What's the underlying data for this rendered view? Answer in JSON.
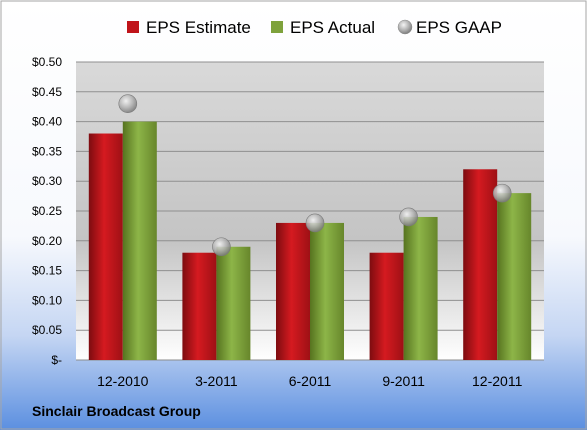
{
  "chart_data": {
    "type": "bar",
    "title": "",
    "categories": [
      "12-2010",
      "3-2011",
      "6-2011",
      "9-2011",
      "12-2011"
    ],
    "series": [
      {
        "name": "EPS Estimate",
        "kind": "bar",
        "values": [
          0.38,
          0.18,
          0.23,
          0.18,
          0.32
        ]
      },
      {
        "name": "EPS Actual",
        "kind": "bar",
        "values": [
          0.4,
          0.19,
          0.23,
          0.24,
          0.28
        ]
      },
      {
        "name": "EPS GAAP",
        "kind": "marker",
        "values": [
          0.43,
          0.19,
          0.23,
          0.24,
          0.28
        ]
      }
    ],
    "ylim": [
      0,
      0.5
    ],
    "yticks": [
      0,
      0.05,
      0.1,
      0.15,
      0.2,
      0.25,
      0.3,
      0.35,
      0.4,
      0.45,
      0.5
    ],
    "ytick_labels": [
      "$-",
      "$0.05",
      "$0.10",
      "$0.15",
      "$0.20",
      "$0.25",
      "$0.30",
      "$0.35",
      "$0.40",
      "$0.45",
      "$0.50"
    ],
    "grid": true,
    "legend_position": "top",
    "colors": {
      "estimate": "#c0141a",
      "actual": "#7ea23c",
      "gaap": "#a6a6a6"
    }
  },
  "footer": {
    "company": "Sinclair Broadcast Group"
  }
}
